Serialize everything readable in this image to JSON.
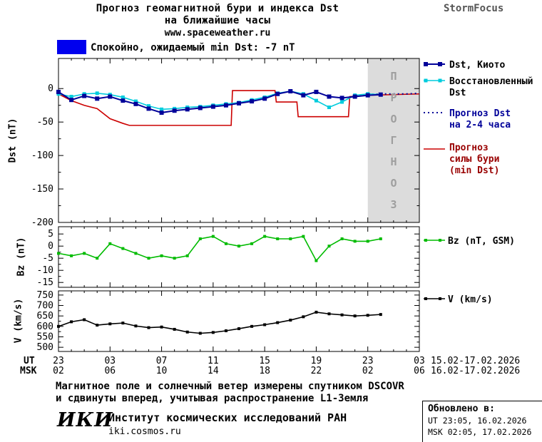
{
  "header": {
    "title_line1": "Прогноз геомагнитной бури и индекса Dst",
    "title_line2": "на ближайшие часы",
    "website": "www.spaceweather.ru",
    "brand": "StormFocus"
  },
  "status": {
    "label": "Спокойно, ожидаемый min Dst: -7 nT"
  },
  "colors": {
    "dst_kyoto": "#000099",
    "dst_restored": "#00CCDD",
    "forecast_storm": "#CC0000",
    "bz": "#00BB00",
    "v": "#000000",
    "status_box": "#0000EE",
    "forecast_region": "#DCDCDC",
    "forecast_region_text": "#9E9E9E",
    "brand_text": "#555555",
    "forecast_dst_legend_text": "#000099",
    "storm_legend_text": "#990000"
  },
  "legend": {
    "dst_kyoto": "Dst, Киото",
    "dst_restored_line1": "Восстановленный",
    "dst_restored_line2": "Dst",
    "forecast_dst_line1": "Прогноз Dst",
    "forecast_dst_line2": "на 2-4 часа",
    "storm_line1": "Прогноз",
    "storm_line2": "силы бури",
    "storm_line3": "(min Dst)",
    "bz": "Bz (nT, GSM)",
    "v": "V (km/s)"
  },
  "axes": {
    "dst_ylabel": "Dst (nT)",
    "bz_ylabel": "Bz (nT)",
    "v_ylabel": "V (km/s)",
    "ut_label": "UT",
    "msk_label": "MSK",
    "ut_ticks": [
      "23",
      "03",
      "07",
      "11",
      "15",
      "19",
      "23",
      "03"
    ],
    "msk_ticks": [
      "02",
      "06",
      "10",
      "14",
      "18",
      "22",
      "02",
      "06"
    ],
    "ut_dates": "15.02-17.02.2026",
    "msk_dates": "16.02-17.02.2026"
  },
  "forecast_region_label": "ПРОГНОЗ",
  "footer": {
    "note_line1": "Магнитное поле и солнечный ветер измерены спутником DSCOVR",
    "note_line2": "и сдвинуты вперед, учитывая распространение L1-Земля",
    "logo": "ИКИ",
    "institute": "Институт космических исследований РАН",
    "site": "iki.cosmos.ru",
    "updated_label": "Обновлено в:",
    "updated_ut": "UT  23:05, 16.02.2026",
    "updated_msk": "MSK 02:05, 17.02.2026"
  },
  "chart_data": [
    {
      "type": "line",
      "title": "Dst index, measured and forecast",
      "ylabel": "Dst (nT)",
      "xlim": [
        0,
        28
      ],
      "ylim": [
        -200,
        45
      ],
      "xticks": [
        0,
        4,
        8,
        12,
        16,
        20,
        24,
        28
      ],
      "yticks": [
        0,
        -50,
        -100,
        -150,
        -200
      ],
      "forecast_region": [
        24,
        28
      ],
      "series": [
        {
          "name": "Прогноз силы бури (min Dst)",
          "color_key": "forecast_storm",
          "width": 1.6,
          "x": [
            0,
            1,
            2,
            3,
            4,
            5,
            5.5,
            13.4,
            13.5,
            16.8,
            16.9,
            18.5,
            18.6,
            22.5,
            22.6,
            24,
            28
          ],
          "y": [
            -8,
            -18,
            -25,
            -30,
            -45,
            -52,
            -55,
            -55,
            -3,
            -3,
            -20,
            -20,
            -42,
            -42,
            -12,
            -10,
            -8
          ]
        },
        {
          "name": "Прогноз Dst на 2-4 часа",
          "color_key": "dst_kyoto",
          "width": 2,
          "dash": "2,4",
          "x": [
            24,
            25,
            26,
            27,
            28
          ],
          "y": [
            -9,
            -8,
            -8,
            -8,
            -7
          ]
        },
        {
          "name": "Восстановленный Dst",
          "color_key": "dst_restored",
          "width": 1.6,
          "marker": "square",
          "marker_size": 5,
          "x": [
            0,
            1,
            2,
            3,
            4,
            5,
            6,
            7,
            8,
            9,
            10,
            11,
            12,
            13,
            14,
            15,
            16,
            17,
            18,
            19,
            20,
            21,
            22,
            23,
            24,
            25
          ],
          "y": [
            -8,
            -12,
            -8,
            -7,
            -9,
            -13,
            -19,
            -26,
            -31,
            -30,
            -28,
            -27,
            -25,
            -23,
            -21,
            -17,
            -13,
            -7,
            -4,
            -8,
            -18,
            -28,
            -20,
            -10,
            -8,
            -9
          ]
        },
        {
          "name": "Dst, Киото",
          "color_key": "dst_kyoto",
          "width": 2,
          "marker": "square",
          "marker_size": 6,
          "x": [
            0,
            1,
            2,
            3,
            4,
            5,
            6,
            7,
            8,
            9,
            10,
            11,
            12,
            13,
            14,
            15,
            16,
            17,
            18,
            19,
            20,
            21,
            22,
            23,
            24,
            25
          ],
          "y": [
            -5,
            -17,
            -11,
            -15,
            -12,
            -18,
            -23,
            -30,
            -36,
            -33,
            -31,
            -29,
            -27,
            -25,
            -22,
            -19,
            -15,
            -8,
            -4,
            -10,
            -5,
            -12,
            -14,
            -12,
            -10,
            -9
          ]
        }
      ]
    },
    {
      "type": "line",
      "title": "Bz component of interplanetary magnetic field",
      "ylabel": "Bz (nT)",
      "xlim": [
        0,
        28
      ],
      "ylim": [
        -17,
        8
      ],
      "xticks": [
        0,
        4,
        8,
        12,
        16,
        20,
        24,
        28
      ],
      "yticks": [
        5,
        0,
        -5,
        -10,
        -15
      ],
      "series": [
        {
          "name": "Bz (nT, GSM)",
          "color_key": "bz",
          "width": 1.6,
          "marker": "square",
          "marker_size": 4,
          "x": [
            0,
            1,
            2,
            3,
            4,
            5,
            6,
            7,
            8,
            9,
            10,
            11,
            12,
            13,
            14,
            15,
            16,
            17,
            18,
            19,
            20,
            21,
            22,
            23,
            24,
            25
          ],
          "y": [
            -3,
            -4,
            -3,
            -5,
            1,
            -1,
            -3,
            -5,
            -4,
            -5,
            -4,
            3,
            4,
            1,
            0,
            1,
            4,
            3,
            3,
            4,
            -6,
            0,
            3,
            2,
            2,
            3
          ]
        }
      ]
    },
    {
      "type": "line",
      "title": "Solar wind speed",
      "ylabel": "V (km/s)",
      "xlim": [
        0,
        28
      ],
      "ylim": [
        480,
        770
      ],
      "xticks": [
        0,
        4,
        8,
        12,
        16,
        20,
        24,
        28
      ],
      "yticks": [
        750,
        700,
        650,
        600,
        550,
        500
      ],
      "series": [
        {
          "name": "V (km/s)",
          "color_key": "v",
          "width": 1.6,
          "marker": "square",
          "marker_size": 4,
          "x": [
            0,
            1,
            2,
            3,
            4,
            5,
            6,
            7,
            8,
            9,
            10,
            11,
            12,
            13,
            14,
            15,
            16,
            17,
            18,
            19,
            20,
            21,
            22,
            23,
            24,
            25
          ],
          "y": [
            600,
            622,
            632,
            606,
            612,
            616,
            602,
            594,
            597,
            586,
            573,
            567,
            571,
            579,
            589,
            600,
            608,
            618,
            630,
            646,
            668,
            660,
            655,
            650,
            653,
            657
          ]
        }
      ]
    }
  ]
}
